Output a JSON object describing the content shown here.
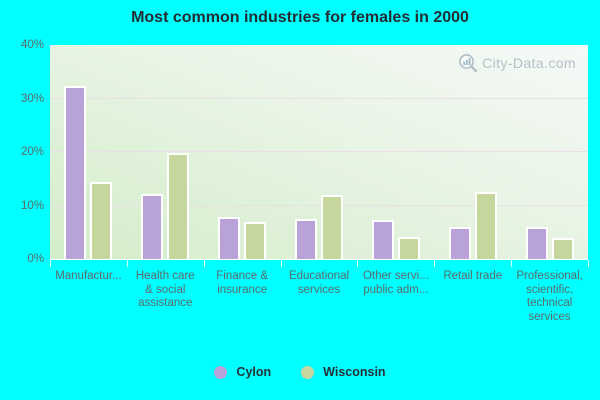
{
  "chart_data": {
    "type": "bar",
    "title": "Most common industries for females in 2000",
    "watermark": "City-Data.com",
    "categories": [
      "Manufactur...",
      "Health care & social assistance",
      "Finance & insurance",
      "Educational services",
      "Other servi... public adm...",
      "Retail trade",
      "Professional, scientific, technical services"
    ],
    "categories_wrapped": [
      [
        "Manufactur..."
      ],
      [
        "Health care",
        "& social",
        "assistance"
      ],
      [
        "Finance &",
        "insurance"
      ],
      [
        "Educational",
        "services"
      ],
      [
        "Other servi...",
        "public adm..."
      ],
      [
        "Retail trade"
      ],
      [
        "Professional,",
        "scientific,",
        "technical",
        "services"
      ]
    ],
    "series": [
      {
        "name": "Cylon",
        "color": "#b9a2d8",
        "values": [
          32.4,
          12.1,
          7.9,
          7.5,
          7.2,
          6.0,
          6.0
        ]
      },
      {
        "name": "Wisconsin",
        "color": "#c6d79e",
        "values": [
          14.4,
          19.9,
          6.9,
          11.9,
          4.1,
          12.5,
          4.0
        ]
      }
    ],
    "ylim": [
      0,
      40
    ],
    "yticks": [
      {
        "value": 0,
        "label": "0%"
      },
      {
        "value": 10,
        "label": "10%"
      },
      {
        "value": 20,
        "label": "20%"
      },
      {
        "value": 30,
        "label": "30%"
      },
      {
        "value": 40,
        "label": "40%"
      }
    ],
    "grid": "horizontal",
    "legend_position": "bottom"
  },
  "colors": {
    "page_bg": "#00ffff",
    "plot_gradient_top_right": "#f5f9f7",
    "plot_gradient_bottom_left": "#d3edca",
    "gridline": "#eadfe7",
    "axis_text": "#5b6b6b",
    "title_text": "#222e33",
    "legend_text": "#253238",
    "watermark_text": "#b4c0c8",
    "bar_border": "#ffffff"
  }
}
